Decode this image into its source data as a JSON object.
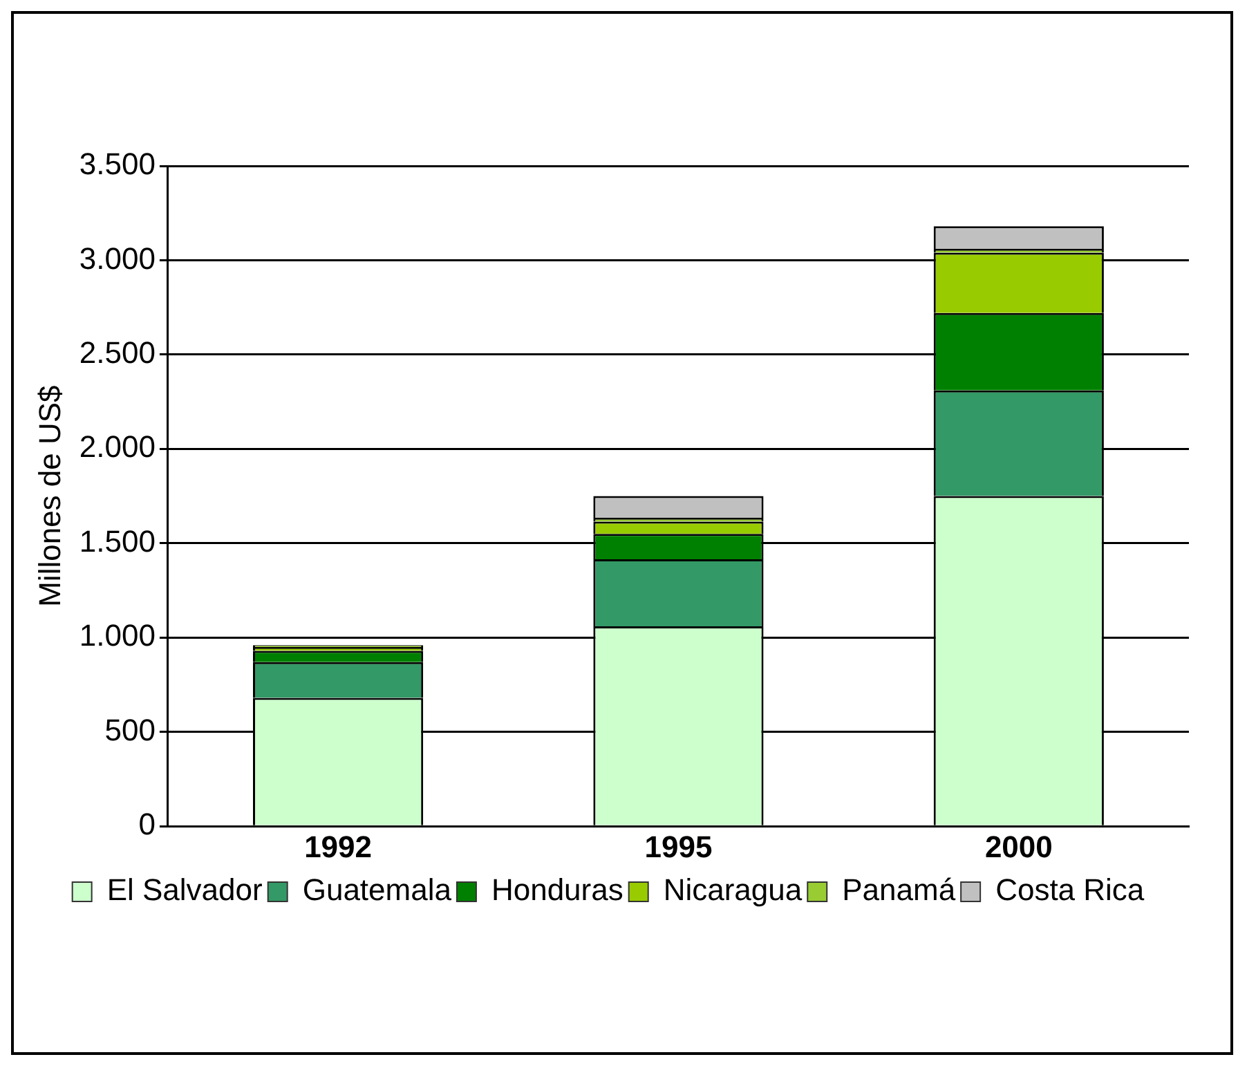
{
  "chart_data": {
    "type": "bar",
    "stacked": true,
    "ylabel": "Millones de US$",
    "categories": [
      "1992",
      "1995",
      "2000"
    ],
    "series": [
      {
        "name": "El Salvador",
        "color": "#ccffcc",
        "values": [
          680,
          1060,
          1750
        ]
      },
      {
        "name": "Guatemala",
        "color": "#339966",
        "values": [
          190,
          355,
          560
        ]
      },
      {
        "name": "Honduras",
        "color": "#008000",
        "values": [
          60,
          135,
          410
        ]
      },
      {
        "name": "Nicaragua",
        "color": "#99cc00",
        "values": [
          20,
          65,
          320
        ]
      },
      {
        "name": "Panamá",
        "color": "#99cc33",
        "values": [
          10,
          20,
          20
        ]
      },
      {
        "name": "Costa Rica",
        "color": "#c0c0c0",
        "values": [
          null,
          115,
          120
        ]
      }
    ],
    "ylim": [
      0,
      3500
    ],
    "yticks": [
      {
        "value": 0,
        "label": "0"
      },
      {
        "value": 500,
        "label": "500"
      },
      {
        "value": 1000,
        "label": "1.000"
      },
      {
        "value": 1500,
        "label": "1.500"
      },
      {
        "value": 2000,
        "label": "2.000"
      },
      {
        "value": 2500,
        "label": "2.500"
      },
      {
        "value": 3000,
        "label": "3.000"
      },
      {
        "value": 3500,
        "label": "3.500"
      }
    ],
    "grid": "y",
    "legend": "bottom"
  }
}
